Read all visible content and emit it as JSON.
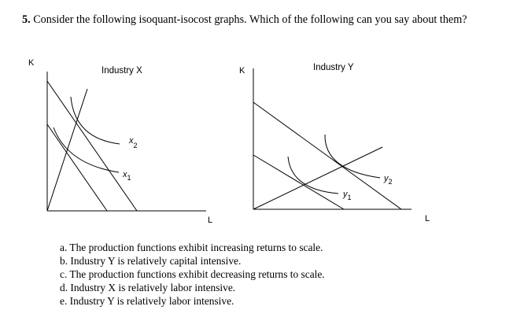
{
  "question": {
    "number": "5.",
    "text": "Consider the following isoquant-isocost graphs. Which of the following can you say about them?"
  },
  "graphs": {
    "industry_x": {
      "title": "Industry X",
      "y_axis_label": "K",
      "x_axis_label": "L",
      "isoquant_upper_label": "x",
      "isoquant_upper_subscript": "2",
      "isoquant_lower_label": "x",
      "isoquant_lower_subscript": "1"
    },
    "industry_y": {
      "title": "Industry Y",
      "y_axis_label": "K",
      "x_axis_label": "L",
      "isoquant_upper_label": "y",
      "isoquant_upper_subscript": "2",
      "isoquant_lower_label": "y",
      "isoquant_lower_subscript": "1"
    }
  },
  "options": [
    "a. The production functions exhibit increasing returns to scale.",
    "b. Industry Y is relatively capital intensive.",
    "c. The production functions exhibit decreasing returns to scale.",
    "d. Industry X is relatively labor intensive.",
    "e. Industry Y is relatively labor intensive."
  ]
}
